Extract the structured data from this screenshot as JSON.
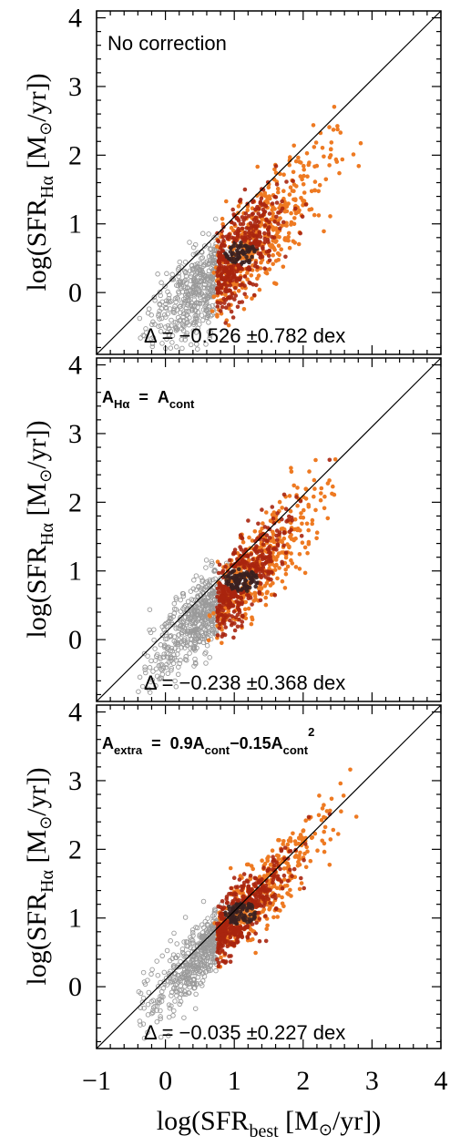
{
  "chart_data": [
    {
      "type": "scatter",
      "annotation": "No correction",
      "stat_text": "Δ = −0.526 ±0.782 dex",
      "ylabel_prefix": "log(SFR",
      "ylabel_sub": "Hα",
      "ylabel_suffix": " [M",
      "ylabel_unit": "/yr])",
      "xlim": [
        -1,
        4
      ],
      "ylim": [
        -0.9,
        4.1
      ],
      "yticks": [
        "0",
        "1",
        "2",
        "3",
        "4"
      ],
      "one_to_one_line": true,
      "offset": -0.526,
      "scatter_sigma": 0.4
    },
    {
      "type": "scatter",
      "annotation_main": "A",
      "annotation_main_sub": "Hα",
      "annotation_eq": "=",
      "annotation_rhs": "A",
      "annotation_rhs_sub": "cont",
      "stat_text": "Δ = −0.238 ±0.368 dex",
      "ylabel_prefix": "log(SFR",
      "ylabel_sub": "Hα",
      "ylabel_suffix": " [M",
      "ylabel_unit": "/yr])",
      "xlim": [
        -1,
        4
      ],
      "ylim": [
        -0.9,
        4.1
      ],
      "yticks": [
        "0",
        "1",
        "2",
        "3",
        "4"
      ],
      "one_to_one_line": true,
      "offset": -0.238,
      "scatter_sigma": 0.34
    },
    {
      "type": "scatter",
      "annotation_main": "A",
      "annotation_main_sub": "extra",
      "annotation_eq": "=",
      "annotation_rhs_1": "0.9A",
      "annotation_rhs_1_sub": "cont",
      "annotation_rhs_2": "−0.15A",
      "annotation_rhs_2_sub": "cont",
      "annotation_rhs_2_sup": "2",
      "stat_text": "Δ = −0.035 ±0.227 dex",
      "ylabel_prefix": "log(SFR",
      "ylabel_sub": "Hα",
      "ylabel_suffix": " [M",
      "ylabel_unit": "/yr])",
      "xlim": [
        -1,
        4
      ],
      "ylim": [
        -0.9,
        4.1
      ],
      "yticks": [
        "0",
        "1",
        "2",
        "3",
        "4"
      ],
      "one_to_one_line": true,
      "offset": -0.035,
      "scatter_sigma": 0.26
    }
  ],
  "xticks": [
    "−1",
    "0",
    "1",
    "2",
    "3",
    "4"
  ],
  "xlabel_prefix": "log(SFR",
  "xlabel_sub": "best",
  "xlabel_suffix": " [M",
  "xlabel_unit": "/yr])",
  "colors": {
    "low_density": "#9a9a9a",
    "dark_core": "#3a2020",
    "red": "#a8250e",
    "orange": "#ee7a22"
  }
}
